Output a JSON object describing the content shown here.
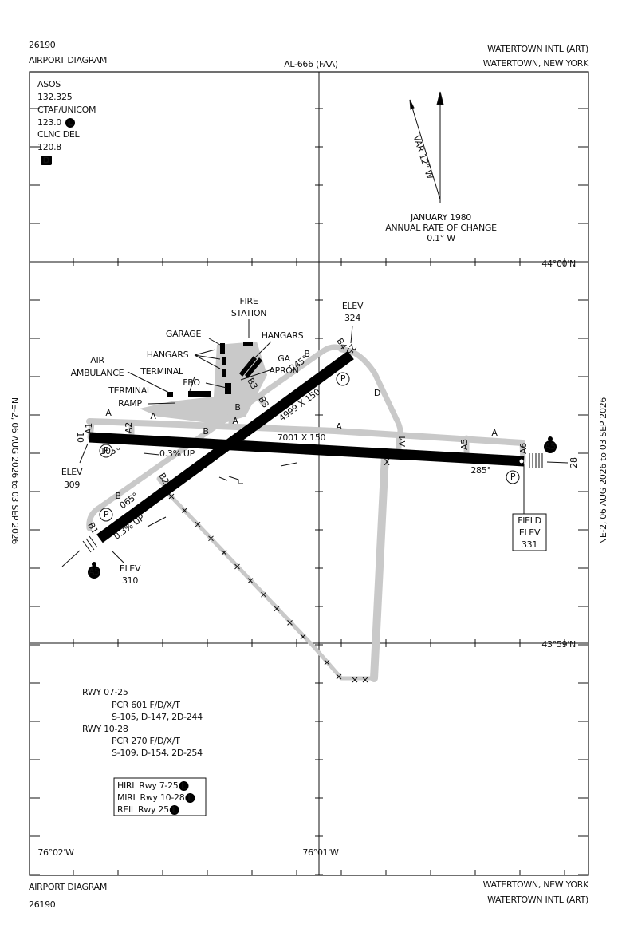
{
  "header": {
    "chart_number": "26190",
    "title": "AIRPORT DIAGRAM",
    "al_number": "AL-666 (FAA)",
    "airport": "WATERTOWN INTL (ART)",
    "city": "WATERTOWN, NEW YORK"
  },
  "effective_dates": [
    "NE-2, 06 AUG 2026 to 03 SEP 2026",
    "NE-2, 06 AUG 2026 to 03 SEP 2026"
  ],
  "communications": [
    {
      "label": "ASOS",
      "frequency": "132.325"
    },
    {
      "label": "CTAF/UNICOM",
      "frequency": "123.0",
      "badge": "L"
    },
    {
      "label": "CLNC DEL",
      "frequency": "120.8",
      "badge": "D"
    }
  ],
  "magnetic": {
    "variation": "VAR 12° W",
    "date": "JANUARY 1980",
    "rate_label": "ANNUAL RATE OF CHANGE",
    "rate": "0.1° W"
  },
  "coordinates": {
    "lat_north": "44°00'N",
    "lat_south": "43°59'N",
    "lon_west": "76°02'W",
    "lon_east": "76°01'W"
  },
  "facilities": [
    "FIRE",
    "STATION",
    "GARAGE",
    "HANGARS",
    "HANGARS",
    "GA",
    "APRON",
    "AIR",
    "AMBULANCE",
    "TERMINAL",
    "FBO",
    "TERMINAL",
    "RAMP"
  ],
  "elevations": [
    [
      "ELEV",
      "324"
    ],
    [
      "ELEV",
      "309"
    ],
    [
      "ELEV",
      "310"
    ],
    [
      "FIELD",
      "ELEV",
      "331"
    ]
  ],
  "runway_labels": [
    "10",
    "28",
    "25",
    "245°",
    "065°",
    "105°",
    "285°",
    "4999 X 150",
    "7001 X 150",
    "0.3% UP",
    "0.3% UP"
  ],
  "taxiway_labels": [
    "A",
    "A",
    "A1",
    "A2",
    "A",
    "A",
    "A4",
    "A5",
    "A",
    "A6",
    "B",
    "B",
    "B",
    "B3",
    "B3",
    "B4",
    "B",
    "B2",
    "B1",
    "D",
    "P",
    "P",
    "P",
    "P",
    "X",
    "A5",
    "A5"
  ],
  "runway_data": [
    "RWY 07-25",
    "PCR 601 F/D/X/T",
    "S-105, D-147, 2D-244",
    "RWY 10-28",
    "PCR 270 F/D/X/T",
    "S-109, D-154, 2D-254"
  ],
  "lighting": [
    {
      "text": "HIRL Rwy 7-25",
      "badge": "L"
    },
    {
      "text": "MIRL Rwy 10-28",
      "badge": "L"
    },
    {
      "text": "REIL Rwy 25",
      "badge": "L"
    }
  ],
  "footer": {
    "title": "AIRPORT DIAGRAM",
    "chart_number": "26190",
    "city": "WATERTOWN, NEW YORK",
    "airport": "WATERTOWN INTL (ART)"
  }
}
